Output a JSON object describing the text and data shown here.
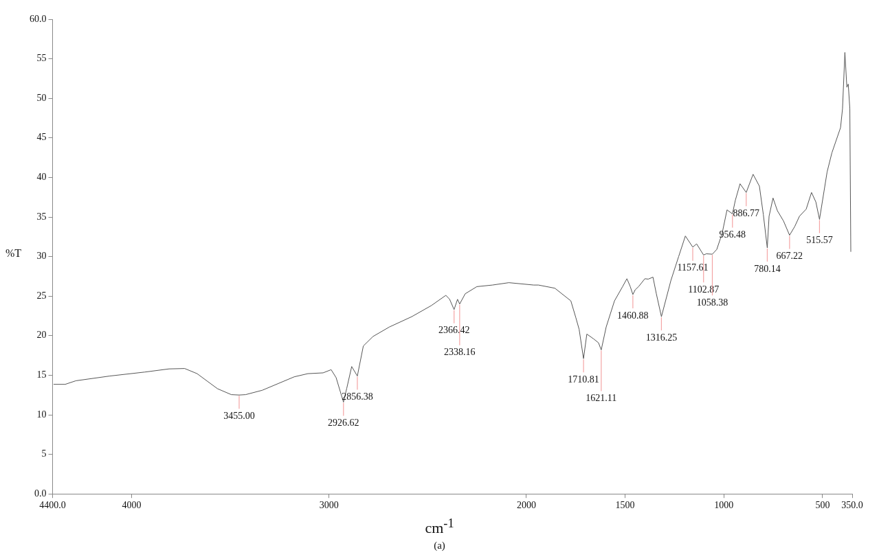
{
  "chart_data": {
    "type": "line",
    "xlabel": "cm$^{-1}$",
    "ylabel": "%T",
    "xlim": [
      4400,
      350
    ],
    "ylim": [
      0,
      60
    ],
    "xticks": [
      {
        "value": 4400,
        "label": "4400.0"
      },
      4000,
      3000,
      2000,
      1500,
      1000,
      500,
      {
        "value": 350,
        "label": "350.0"
      }
    ],
    "yticks": [
      {
        "value": 0,
        "label": "0.0"
      },
      5,
      10,
      15,
      20,
      25,
      30,
      35,
      40,
      45,
      50,
      55,
      {
        "value": 60,
        "label": "60.0"
      }
    ],
    "grid": false,
    "marker": "none",
    "line_style": "solid",
    "x": [
      4395,
      4336,
      4282,
      4110,
      3933,
      3810,
      3731,
      3668,
      3565,
      3495,
      3455,
      3422,
      3338,
      3176,
      3107,
      3030,
      2989,
      2964,
      2926.62,
      2910,
      2885,
      2856.38,
      2826,
      2777,
      2694,
      2581,
      2482,
      2408,
      2389,
      2366.42,
      2349,
      2338.16,
      2310,
      2251,
      2172,
      2089,
      1963,
      1939,
      1856,
      1775,
      1750,
      1733,
      1710.81,
      1694,
      1660,
      1635,
      1621.11,
      1596,
      1554,
      1513,
      1491,
      1474,
      1460.88,
      1449,
      1432,
      1400,
      1383,
      1359,
      1342,
      1316.25,
      1268,
      1229,
      1195,
      1157.61,
      1138,
      1102.87,
      1089,
      1058.38,
      1036,
      1009,
      984,
      956.48,
      942,
      918,
      886.77,
      852,
      820,
      800,
      780.14,
      771,
      751,
      729,
      698,
      667.22,
      641,
      617,
      583,
      556,
      534,
      515.57,
      477,
      453,
      409,
      399,
      387,
      377,
      370,
      362,
      357
    ],
    "series": [
      {
        "color": "#555555",
        "values": [
          13.85,
          13.85,
          14.3,
          14.9,
          15.4,
          15.8,
          15.85,
          15.2,
          13.3,
          12.55,
          12.5,
          12.55,
          13.1,
          14.8,
          15.2,
          15.3,
          15.7,
          14.7,
          11.6,
          13.35,
          16.1,
          14.9,
          18.7,
          19.9,
          21.1,
          22.4,
          23.8,
          25.1,
          24.6,
          23.3,
          24.6,
          24.0,
          25.3,
          26.2,
          26.4,
          26.7,
          26.4,
          26.4,
          26.0,
          24.4,
          22.3,
          20.8,
          17.1,
          20.2,
          19.6,
          19.1,
          18.2,
          21.1,
          24.4,
          26.2,
          27.2,
          26.2,
          25.2,
          25.8,
          26.2,
          27.2,
          27.15,
          27.4,
          25.3,
          22.4,
          27.0,
          30.0,
          32.6,
          31.2,
          31.6,
          30.2,
          30.35,
          30.3,
          30.9,
          32.9,
          35.9,
          35.4,
          37.1,
          39.2,
          38.1,
          40.4,
          38.9,
          35.3,
          31.1,
          35.1,
          37.4,
          35.8,
          34.5,
          32.7,
          33.8,
          35.1,
          36.0,
          38.1,
          36.9,
          34.7,
          40.7,
          43.1,
          46.3,
          48.7,
          55.8,
          51.4,
          51.8,
          48.7,
          30.6
        ]
      }
    ],
    "annotations": [
      {
        "text": "3455.00",
        "x": 3455,
        "y": 12.5
      },
      {
        "text": "2926.62",
        "x": 2926.62,
        "y": 11.6
      },
      {
        "text": "2856.38",
        "x": 2856.38,
        "y": 14.9
      },
      {
        "text": "2366.42",
        "x": 2366.42,
        "y": 23.3
      },
      {
        "text": "2338.16",
        "x": 2338.16,
        "y": 24.0
      },
      {
        "text": "1710.81",
        "x": 1710.81,
        "y": 17.1
      },
      {
        "text": "1621.11",
        "x": 1621.11,
        "y": 18.2
      },
      {
        "text": "1460.88",
        "x": 1460.88,
        "y": 25.2
      },
      {
        "text": "1316.25",
        "x": 1316.25,
        "y": 22.4
      },
      {
        "text": "1157.61",
        "x": 1157.61,
        "y": 31.2
      },
      {
        "text": "1102.87",
        "x": 1102.87,
        "y": 30.2
      },
      {
        "text": "1058.38",
        "x": 1058.38,
        "y": 30.3
      },
      {
        "text": "956.48",
        "x": 956.48,
        "y": 35.4
      },
      {
        "text": "886.77",
        "x": 886.77,
        "y": 38.1
      },
      {
        "text": "780.14",
        "x": 780.14,
        "y": 31.1
      },
      {
        "text": "667.22",
        "x": 667.22,
        "y": 32.7
      },
      {
        "text": "515.57",
        "x": 515.57,
        "y": 34.7
      },
      "(a)"
    ]
  }
}
